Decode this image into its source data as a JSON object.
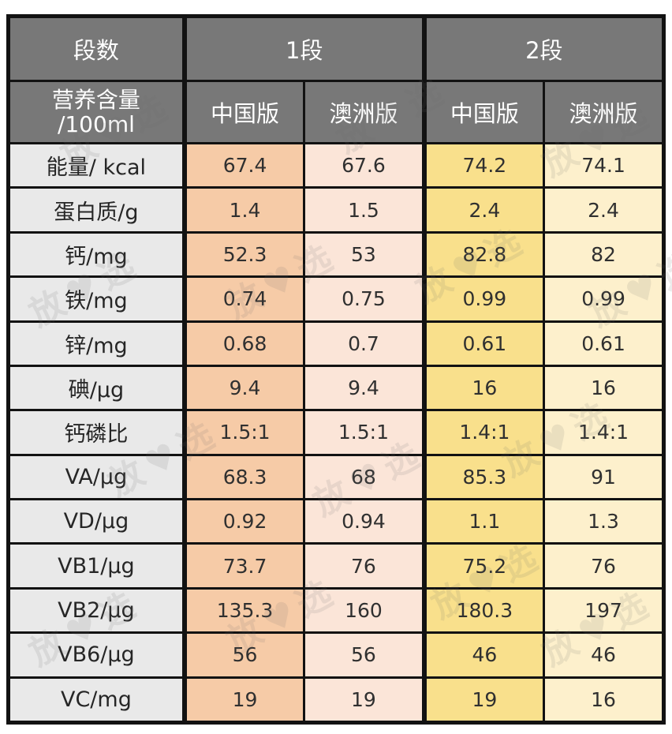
{
  "watermark": {
    "text": "放♥选"
  },
  "colors": {
    "header_bg": "#787878",
    "header_text": "#ffffff",
    "label_column_bg": "#e9e9e9",
    "stage1_china_bg": "#f6cba7",
    "stage1_australia_bg": "#fbe5d8",
    "stage2_china_bg": "#f9e08c",
    "stage2_australia_bg": "#fdf0cc",
    "border": "#121212",
    "cell_text": "#303030"
  },
  "table": {
    "corner_label": "段数",
    "groups": [
      "1段",
      "2段"
    ],
    "unit_label_line1": "营养含量",
    "unit_label_line2": "/100ml",
    "columns": [
      "中国版",
      "澳洲版",
      "中国版",
      "澳洲版"
    ],
    "rows": [
      {
        "label": "能量/ kcal",
        "values": [
          "67.4",
          "67.6",
          "74.2",
          "74.1"
        ]
      },
      {
        "label": "蛋白质/g",
        "values": [
          "1.4",
          "1.5",
          "2.4",
          "2.4"
        ]
      },
      {
        "label": "钙/mg",
        "values": [
          "52.3",
          "53",
          "82.8",
          "82"
        ]
      },
      {
        "label": "铁/mg",
        "values": [
          "0.74",
          "0.75",
          "0.99",
          "0.99"
        ]
      },
      {
        "label": "锌/mg",
        "values": [
          "0.68",
          "0.7",
          "0.61",
          "0.61"
        ]
      },
      {
        "label": "碘/µg",
        "values": [
          "9.4",
          "9.4",
          "16",
          "16"
        ]
      },
      {
        "label": "钙磷比",
        "values": [
          "1.5:1",
          "1.5:1",
          "1.4:1",
          "1.4:1"
        ]
      },
      {
        "label": "VA/µg",
        "values": [
          "68.3",
          "68",
          "85.3",
          "91"
        ]
      },
      {
        "label": "VD/µg",
        "values": [
          "0.92",
          "0.94",
          "1.1",
          "1.3"
        ]
      },
      {
        "label": "VB1/µg",
        "values": [
          "73.7",
          "76",
          "75.2",
          "76"
        ]
      },
      {
        "label": "VB2/µg",
        "values": [
          "135.3",
          "160",
          "180.3",
          "197"
        ]
      },
      {
        "label": "VB6/µg",
        "values": [
          "56",
          "56",
          "46",
          "46"
        ]
      },
      {
        "label": "VC/mg",
        "values": [
          "19",
          "19",
          "19",
          "16"
        ]
      }
    ]
  },
  "chart_data": {
    "type": "table",
    "column_groups": [
      {
        "label": "段数",
        "span": 1
      },
      {
        "label": "1段",
        "span": 2
      },
      {
        "label": "2段",
        "span": 2
      }
    ],
    "columns": [
      "营养含量/100ml",
      "1段 中国版",
      "1段 澳洲版",
      "2段 中国版",
      "2段 澳洲版"
    ],
    "rows": [
      [
        "能量/ kcal",
        67.4,
        67.6,
        74.2,
        74.1
      ],
      [
        "蛋白质/g",
        1.4,
        1.5,
        2.4,
        2.4
      ],
      [
        "钙/mg",
        52.3,
        53,
        82.8,
        82
      ],
      [
        "铁/mg",
        0.74,
        0.75,
        0.99,
        0.99
      ],
      [
        "锌/mg",
        0.68,
        0.7,
        0.61,
        0.61
      ],
      [
        "碘/µg",
        9.4,
        9.4,
        16,
        16
      ],
      [
        "钙磷比",
        "1.5:1",
        "1.5:1",
        "1.4:1",
        "1.4:1"
      ],
      [
        "VA/µg",
        68.3,
        68,
        85.3,
        91
      ],
      [
        "VD/µg",
        0.92,
        0.94,
        1.1,
        1.3
      ],
      [
        "VB1/µg",
        73.7,
        76,
        75.2,
        76
      ],
      [
        "VB2/µg",
        135.3,
        160,
        180.3,
        197
      ],
      [
        "VB6/µg",
        56,
        56,
        46,
        46
      ],
      [
        "VC/mg",
        19,
        19,
        19,
        16
      ]
    ]
  }
}
